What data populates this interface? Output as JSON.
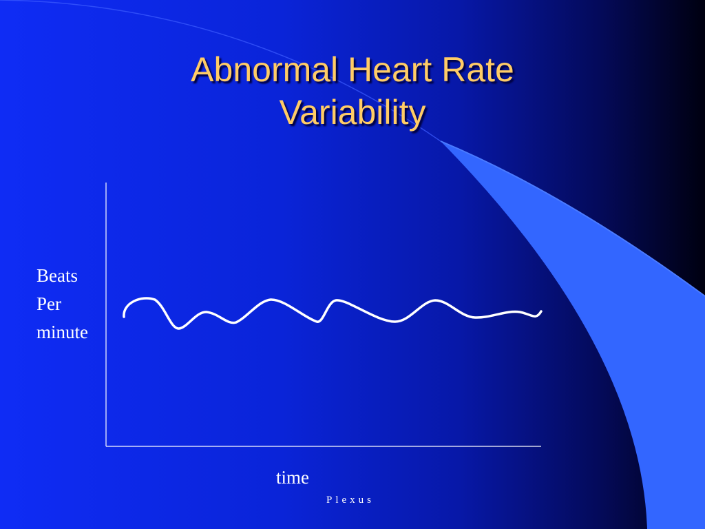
{
  "slide": {
    "title_line1": "Abnormal Heart Rate",
    "title_line2": "Variability",
    "footer": "Plexus"
  },
  "graph": {
    "y_label_line1": "Beats",
    "y_label_line2": "Per",
    "y_label_line3": "minute",
    "x_label": "time"
  },
  "colors": {
    "title": "#ffcc66",
    "swoosh": "#3366ff",
    "text": "#ffffff",
    "background": "#0a24d8"
  }
}
